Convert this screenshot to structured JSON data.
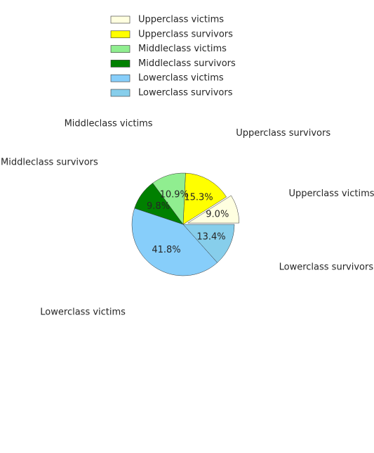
{
  "chart_data": {
    "type": "pie",
    "title": "",
    "legend_placement": "top-center",
    "start_angle_deg": 0,
    "direction": "counterclockwise",
    "slices": [
      {
        "label": "Upperclass victims",
        "value": 9.0,
        "pct_label": "9.0%",
        "color": "#ffffe0",
        "exploded": true
      },
      {
        "label": "Upperclass survivors",
        "value": 15.3,
        "pct_label": "15.3%",
        "color": "#ffff00",
        "exploded": false
      },
      {
        "label": "Middleclass victims",
        "value": 10.9,
        "pct_label": "10.9%",
        "color": "#90ee90",
        "exploded": false
      },
      {
        "label": "Middleclass survivors",
        "value": 9.8,
        "pct_label": "9.8%",
        "color": "#008000",
        "exploded": false
      },
      {
        "label": "Lowerclass victims",
        "value": 41.8,
        "pct_label": "41.8%",
        "color": "#87cefa",
        "exploded": false
      },
      {
        "label": "Lowerclass survivors",
        "value": 13.4,
        "pct_label": "13.4%",
        "color": "#87ceeb",
        "exploded": false
      }
    ]
  }
}
